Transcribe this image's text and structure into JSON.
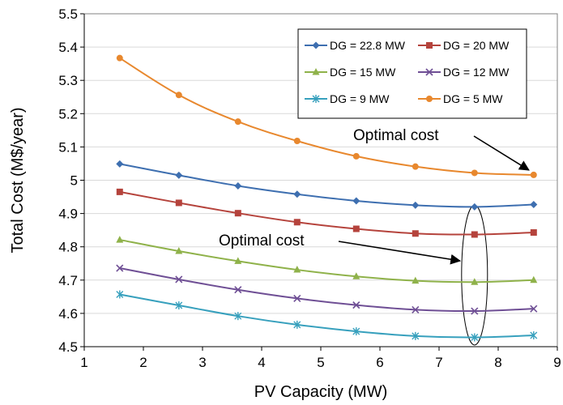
{
  "chart_data": {
    "type": "line",
    "xlabel": "PV Capacity (MW)",
    "ylabel": "Total Cost (M$/year)",
    "xlim": [
      1,
      9
    ],
    "ylim": [
      4.5,
      5.5
    ],
    "xticks": [
      "1",
      "2",
      "3",
      "4",
      "5",
      "6",
      "7",
      "8",
      "9"
    ],
    "yticks": [
      "4.5",
      "4.6",
      "4.7",
      "4.8",
      "4.9",
      "5",
      "5.1",
      "5.2",
      "5.3",
      "5.4",
      "5.5"
    ],
    "grid": "horizontal",
    "legend_position": "top-right",
    "x": [
      1.6,
      2.6,
      3.6,
      4.6,
      5.6,
      6.6,
      7.6,
      8.6
    ],
    "series": [
      {
        "name": "DG = 22.8 MW",
        "color": "#3e6fb0",
        "marker": "diamond",
        "values": [
          5.049,
          5.015,
          4.983,
          4.958,
          4.938,
          4.925,
          4.92,
          4.927
        ]
      },
      {
        "name": "DG = 20 MW",
        "color": "#b5433c",
        "marker": "square",
        "values": [
          4.965,
          4.932,
          4.901,
          4.874,
          4.854,
          4.84,
          4.837,
          4.843
        ]
      },
      {
        "name": "DG = 15 MW",
        "color": "#8fb24a",
        "marker": "triangle",
        "values": [
          4.821,
          4.787,
          4.757,
          4.731,
          4.711,
          4.698,
          4.694,
          4.7
        ]
      },
      {
        "name": "DG = 12 MW",
        "color": "#6f4f95",
        "marker": "x",
        "values": [
          4.736,
          4.702,
          4.671,
          4.645,
          4.625,
          4.611,
          4.607,
          4.614
        ]
      },
      {
        "name": "DG = 9 MW",
        "color": "#37a0bd",
        "marker": "star",
        "values": [
          4.657,
          4.624,
          4.592,
          4.566,
          4.546,
          4.532,
          4.528,
          4.534
        ]
      },
      {
        "name": "DG = 5 MW",
        "color": "#e8882e",
        "marker": "circle",
        "values": [
          5.367,
          5.256,
          5.176,
          5.118,
          5.072,
          5.041,
          5.022,
          5.016
        ]
      }
    ],
    "annotations": [
      {
        "text": "Optimal cost",
        "points_to": [
          8.6,
          5.016
        ]
      },
      {
        "text": "Optimal cost",
        "points_to": [
          7.6,
          4.776
        ]
      }
    ]
  }
}
